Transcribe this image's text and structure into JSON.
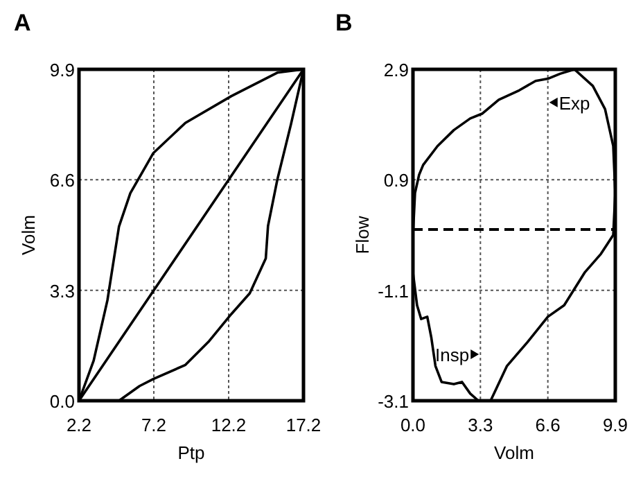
{
  "chart_data": [
    {
      "type": "line",
      "title": "A",
      "xlabel": "Ptp",
      "ylabel": "Volm",
      "xlim": [
        2.2,
        17.2
      ],
      "ylim": [
        0,
        9.9
      ],
      "xticks": [
        2.2,
        7.2,
        12.2,
        17.2
      ],
      "yticks": [
        {
          "value": 0,
          "label": "0.0"
        },
        3.3,
        6.6,
        9.9
      ],
      "grid": true,
      "line_style": "solid",
      "series": [
        {
          "color": "#000000",
          "x": [
            2.2,
            3.18,
            4.1,
            4.87,
            5.63,
            7.17,
            9.31,
            12.38,
            15.45,
            17.2,
            16.37,
            15.45,
            14.83,
            14.68,
            13.61,
            12.38,
            10.85,
            9.31,
            7.17,
            6.25,
            4.87
          ],
          "values": [
            0,
            1.2,
            3.0,
            5.2,
            6.2,
            7.4,
            8.3,
            9.1,
            9.8,
            9.9,
            8.27,
            6.6,
            5.22,
            4.25,
            3.21,
            2.59,
            1.76,
            1.07,
            0.65,
            0.44,
            0
          ]
        },
        {
          "color": "#000000",
          "x": [
            2.2,
            17.2
          ],
          "values": [
            0,
            9.9
          ]
        }
      ]
    },
    {
      "type": "line",
      "title": "B",
      "xlabel": "Volm",
      "ylabel": "Flow",
      "xlim": [
        0,
        9.9
      ],
      "ylim": [
        -3.1,
        2.9
      ],
      "xticks": [
        {
          "value": 0,
          "label": "0.0"
        },
        3.3,
        6.6,
        9.9
      ],
      "yticks": [
        -3.1,
        -1.1,
        0.9,
        2.9
      ],
      "grid": true,
      "line_style": "solid",
      "ref_lines": [
        {
          "axis": "y",
          "value": 0,
          "line_style": "dashed",
          "color": "#000000"
        }
      ],
      "annotations": [
        "Exp",
        "Insp"
      ],
      "series": [
        {
          "color": "#000000",
          "x": [
            0,
            0.1,
            0.3,
            0.5,
            1.2,
            2.0,
            2.8,
            3.4,
            4.2,
            5.2,
            6.0,
            6.6,
            7.2,
            7.9,
            8.8,
            9.4,
            9.8,
            9.9,
            9.8,
            9.2,
            8.4,
            7.4,
            6.6,
            5.6,
            4.6,
            3.8,
            3.2,
            2.8,
            2.4,
            2.0,
            1.4,
            1.1,
            0.9,
            0.7,
            0.4,
            0.2,
            0
          ],
          "values": [
            -0.1,
            0.66,
            0.99,
            1.17,
            1.51,
            1.8,
            2.01,
            2.1,
            2.35,
            2.52,
            2.69,
            2.73,
            2.82,
            2.9,
            2.6,
            2.18,
            1.51,
            0.66,
            -0.1,
            -0.44,
            -0.78,
            -1.37,
            -1.58,
            -2.04,
            -2.47,
            -3.1,
            -3.1,
            -2.97,
            -2.76,
            -2.8,
            -2.76,
            -2.47,
            -1.96,
            -1.58,
            -1.62,
            -1.37,
            -0.78
          ]
        }
      ]
    }
  ]
}
